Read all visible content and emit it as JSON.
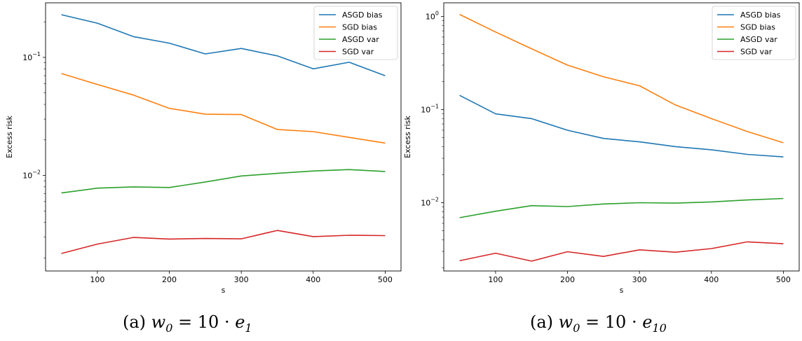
{
  "chart_data": [
    {
      "type": "line",
      "xlabel": "s",
      "ylabel": "Excess risk",
      "yscale": "log",
      "xlim": [
        28,
        522
      ],
      "ylim": [
        0.00155,
        0.29
      ],
      "xticks": [
        100,
        200,
        300,
        400,
        500
      ],
      "yticks": [
        0.01,
        0.1
      ],
      "ytick_labels": [
        "10^-2",
        "10^-1"
      ],
      "grid": false,
      "legend_position": "top-right",
      "x": [
        50,
        100,
        150,
        200,
        250,
        300,
        350,
        400,
        450,
        500
      ],
      "series": [
        {
          "name": "ASGD bias",
          "color": "#1f77b4",
          "values": [
            0.23,
            0.195,
            0.15,
            0.132,
            0.107,
            0.119,
            0.103,
            0.08,
            0.091,
            0.07
          ]
        },
        {
          "name": "SGD bias",
          "color": "#ff7f0e",
          "values": [
            0.073,
            0.059,
            0.048,
            0.037,
            0.033,
            0.0328,
            0.0245,
            0.0235,
            0.021,
            0.0188
          ]
        },
        {
          "name": "ASGD var",
          "color": "#2ca02c",
          "values": [
            0.0071,
            0.0078,
            0.008,
            0.0079,
            0.0088,
            0.0099,
            0.0104,
            0.0109,
            0.0112,
            0.0108
          ]
        },
        {
          "name": "SGD var",
          "color": "#d62728",
          "values": [
            0.00218,
            0.00262,
            0.00298,
            0.00289,
            0.00292,
            0.0029,
            0.00342,
            0.00303,
            0.00311,
            0.00309
          ]
        }
      ],
      "caption": {
        "prefix": "(a) ",
        "w": "w",
        "w_sub": "0",
        "eq": " = 10 · ",
        "e": "e",
        "e_sub": "1"
      }
    },
    {
      "type": "line",
      "xlabel": "s",
      "ylabel": "Excess risk",
      "yscale": "log",
      "xlim": [
        28,
        522
      ],
      "ylim": [
        0.00185,
        1.4
      ],
      "xticks": [
        100,
        200,
        300,
        400,
        500
      ],
      "yticks": [
        0.01,
        0.1,
        1
      ],
      "ytick_labels": [
        "10^-2",
        "10^-1",
        "10^0"
      ],
      "grid": false,
      "legend_position": "top-right",
      "x": [
        50,
        100,
        150,
        200,
        250,
        300,
        350,
        400,
        450,
        500
      ],
      "series": [
        {
          "name": "ASGD bias",
          "color": "#1f77b4",
          "values": [
            0.142,
            0.09,
            0.08,
            0.06,
            0.049,
            0.045,
            0.04,
            0.037,
            0.033,
            0.031
          ]
        },
        {
          "name": "SGD bias",
          "color": "#ff7f0e",
          "values": [
            1.05,
            0.68,
            0.45,
            0.3,
            0.225,
            0.18,
            0.112,
            0.08,
            0.058,
            0.044
          ]
        },
        {
          "name": "ASGD var",
          "color": "#2ca02c",
          "values": [
            0.0069,
            0.0081,
            0.0093,
            0.0091,
            0.0097,
            0.01,
            0.0099,
            0.0102,
            0.0107,
            0.0111
          ]
        },
        {
          "name": "SGD var",
          "color": "#d62728",
          "values": [
            0.00238,
            0.00287,
            0.00236,
            0.00298,
            0.00265,
            0.00312,
            0.00294,
            0.00322,
            0.0038,
            0.00363
          ]
        }
      ],
      "caption": {
        "prefix": "(a) ",
        "w": "w",
        "w_sub": "0",
        "eq": " = 10 · ",
        "e": "e",
        "e_sub": "10"
      }
    }
  ]
}
